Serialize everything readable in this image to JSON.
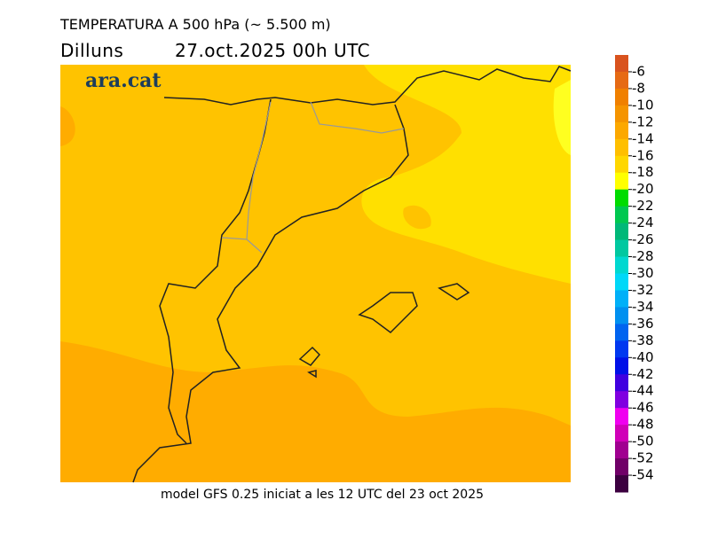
{
  "header": {
    "title": "TEMPERATURA A 500 hPa (~ 5.500 m)",
    "day": "Dilluns",
    "date": "27.oct.2025 00h UTC",
    "logo": "ara.cat"
  },
  "footer": "model GFS 0.25 iniciat a les 12 UTC del 23 oct 2025",
  "colorbar": {
    "labels": [
      -6,
      -8,
      -10,
      -12,
      -14,
      -16,
      -18,
      -20,
      -22,
      -24,
      -26,
      -28,
      -30,
      -32,
      -34,
      -36,
      -38,
      -40,
      -42,
      -44,
      -46,
      -48,
      -50,
      -52,
      -54
    ],
    "colors": [
      "#d9531e",
      "#e66a14",
      "#f08000",
      "#f59400",
      "#fca800",
      "#ffbf00",
      "#ffd700",
      "#ffff00",
      "#00dc00",
      "#00c850",
      "#00b878",
      "#00c8a0",
      "#00d8d0",
      "#00d8f8",
      "#00b0f8",
      "#0090f0",
      "#0064f0",
      "#0038f0",
      "#0010e8",
      "#4000e0",
      "#8000e0",
      "#f000f0",
      "#d000b8",
      "#a00090",
      "#700068",
      "#3c0040"
    ]
  }
}
